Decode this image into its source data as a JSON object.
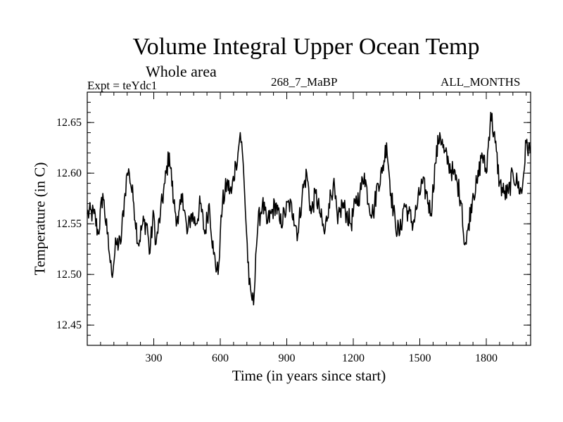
{
  "chart_data": {
    "type": "line",
    "title": "Volume Integral Upper Ocean Temp",
    "subtitle": "Whole area",
    "experiment_label": "Expt = teYdc1",
    "case_label": "268_7_MaBP",
    "months_label": "ALL_MONTHS",
    "xlabel": "Time (in years since start)",
    "ylabel": "Temperature (in C)",
    "xlim": [
      0,
      2000
    ],
    "ylim": [
      12.43,
      12.68
    ],
    "xticks": [
      300,
      600,
      900,
      1200,
      1500,
      1800
    ],
    "xtick_labels": [
      "300",
      "600",
      "900",
      "1200",
      "1500",
      "1800"
    ],
    "yticks": [
      12.45,
      12.5,
      12.55,
      12.6,
      12.65
    ],
    "ytick_labels": [
      "12.45",
      "12.50",
      "12.55",
      "12.60",
      "12.65"
    ],
    "line_color": "#000000",
    "series": [
      {
        "name": "Volume integral upper ocean temperature",
        "x": [
          0,
          30,
          50,
          70,
          90,
          100,
          110,
          130,
          150,
          170,
          180,
          190,
          210,
          230,
          250,
          270,
          280,
          300,
          310,
          330,
          350,
          370,
          390,
          410,
          430,
          450,
          470,
          490,
          510,
          530,
          550,
          570,
          590,
          600,
          610,
          630,
          650,
          670,
          680,
          690,
          700,
          710,
          730,
          740,
          750,
          760,
          770,
          790,
          810,
          830,
          850,
          870,
          890,
          910,
          930,
          950,
          970,
          990,
          1010,
          1030,
          1050,
          1070,
          1090,
          1110,
          1130,
          1150,
          1170,
          1190,
          1210,
          1230,
          1250,
          1270,
          1290,
          1310,
          1330,
          1350,
          1370,
          1390,
          1410,
          1430,
          1450,
          1470,
          1490,
          1510,
          1530,
          1550,
          1570,
          1590,
          1610,
          1630,
          1650,
          1670,
          1690,
          1700,
          1710,
          1720,
          1740,
          1760,
          1780,
          1800,
          1820,
          1840,
          1860,
          1880,
          1900,
          1920,
          1940,
          1960,
          1980,
          2000
        ],
        "y": [
          12.56,
          12.56,
          12.54,
          12.58,
          12.54,
          12.52,
          12.5,
          12.53,
          12.53,
          12.58,
          12.6,
          12.6,
          12.57,
          12.53,
          12.55,
          12.55,
          12.52,
          12.56,
          12.53,
          12.56,
          12.59,
          12.62,
          12.57,
          12.55,
          12.58,
          12.54,
          12.56,
          12.55,
          12.57,
          12.54,
          12.57,
          12.52,
          12.5,
          12.54,
          12.57,
          12.59,
          12.58,
          12.61,
          12.62,
          12.64,
          12.62,
          12.58,
          12.49,
          12.48,
          12.47,
          12.52,
          12.55,
          12.57,
          12.55,
          12.56,
          12.57,
          12.55,
          12.56,
          12.57,
          12.56,
          12.54,
          12.58,
          12.6,
          12.56,
          12.58,
          12.56,
          12.54,
          12.57,
          12.59,
          12.55,
          12.57,
          12.56,
          12.55,
          12.57,
          12.58,
          12.6,
          12.57,
          12.56,
          12.59,
          12.6,
          12.63,
          12.58,
          12.55,
          12.54,
          12.57,
          12.56,
          12.55,
          12.57,
          12.59,
          12.58,
          12.56,
          12.61,
          12.64,
          12.62,
          12.61,
          12.6,
          12.59,
          12.57,
          12.53,
          12.53,
          12.55,
          12.58,
          12.59,
          12.62,
          12.6,
          12.66,
          12.63,
          12.59,
          12.58,
          12.58,
          12.6,
          12.59,
          12.58,
          12.63,
          12.62
        ]
      }
    ]
  }
}
